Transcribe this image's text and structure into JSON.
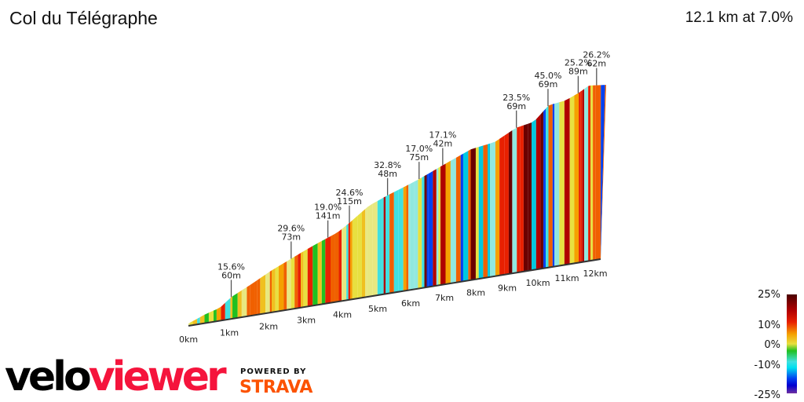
{
  "header": {
    "title": "Col du Télégraphe",
    "summary": "12.1 km at 7.0%"
  },
  "chart_data": {
    "type": "area",
    "title": "Col du Télégraphe",
    "subtitle": "12.1 km at 7.0%",
    "x_unit": "km",
    "xlim": [
      0,
      12.1
    ],
    "x_ticks": [
      "0km",
      "1km",
      "2km",
      "3km",
      "4km",
      "5km",
      "6km",
      "7km",
      "8km",
      "9km",
      "10km",
      "11km",
      "12km"
    ],
    "color_by": "gradient",
    "annotations": [
      {
        "km": 1.05,
        "gradient": "15.6%",
        "length": "60m"
      },
      {
        "km": 2.6,
        "gradient": "29.6%",
        "length": "73m"
      },
      {
        "km": 3.6,
        "gradient": "19.0%",
        "length": "141m"
      },
      {
        "km": 4.2,
        "gradient": "24.6%",
        "length": "115m"
      },
      {
        "km": 5.3,
        "gradient": "32.8%",
        "length": "48m"
      },
      {
        "km": 6.25,
        "gradient": "17.0%",
        "length": "75m"
      },
      {
        "km": 6.95,
        "gradient": "17.1%",
        "length": "42m"
      },
      {
        "km": 9.3,
        "gradient": "23.5%",
        "length": "69m"
      },
      {
        "km": 10.35,
        "gradient": "45.0%",
        "length": "69m"
      },
      {
        "km": 11.4,
        "gradient": "25.2%",
        "length": "89m"
      },
      {
        "km": 12.05,
        "gradient": "26.2%",
        "length": "62m"
      }
    ],
    "legend": {
      "labels": [
        "25%",
        "10%",
        "0%",
        "-10%",
        "-25%"
      ],
      "colors": [
        "#4a0000",
        "#b00000",
        "#f5a000",
        "#e8e040",
        "#20c020",
        "#40e0e0",
        "#0040f0",
        "#7030a0"
      ]
    }
  },
  "branding": {
    "logo_velo": "velo",
    "logo_viewer": "viewer",
    "powered_by": "POWERED BY",
    "strava": "STRAVA"
  }
}
